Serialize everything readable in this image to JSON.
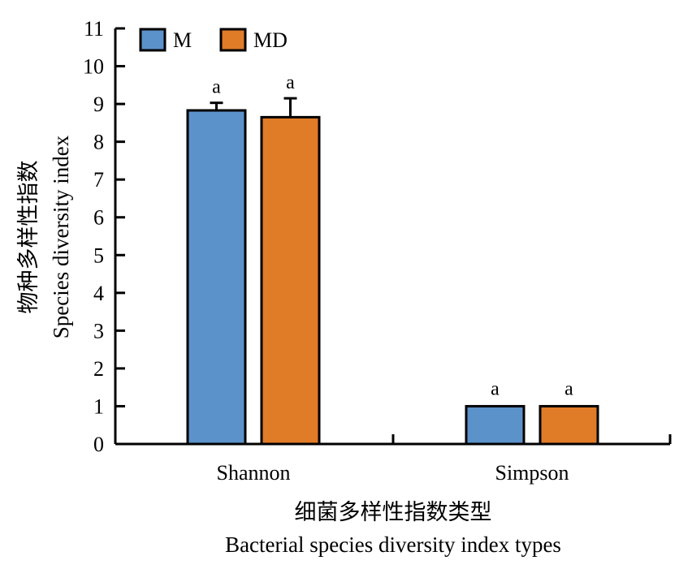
{
  "chart_data": {
    "type": "bar",
    "categories": [
      "Shannon",
      "Simpson"
    ],
    "series": [
      {
        "name": "M",
        "color": "#5b92c9",
        "values": [
          8.83,
          1.0
        ],
        "errors": [
          0.2,
          0.0
        ],
        "letters": [
          "a",
          "a"
        ]
      },
      {
        "name": "MD",
        "color": "#e07b28",
        "values": [
          8.65,
          1.0
        ],
        "errors": [
          0.5,
          0.0
        ],
        "letters": [
          "a",
          "a"
        ]
      }
    ],
    "ylim": [
      0,
      11
    ],
    "yticks": [
      "0",
      "1",
      "2",
      "3",
      "4",
      "5",
      "6",
      "7",
      "8",
      "9",
      "10",
      "11"
    ],
    "ylabel_cn": "物种多样性指数",
    "ylabel_en": "Species diversity index",
    "xlabel_cn": "细菌多样性指数类型",
    "xlabel_en": "Bacterial species diversity index types",
    "legend": "top-left",
    "grid": false
  }
}
